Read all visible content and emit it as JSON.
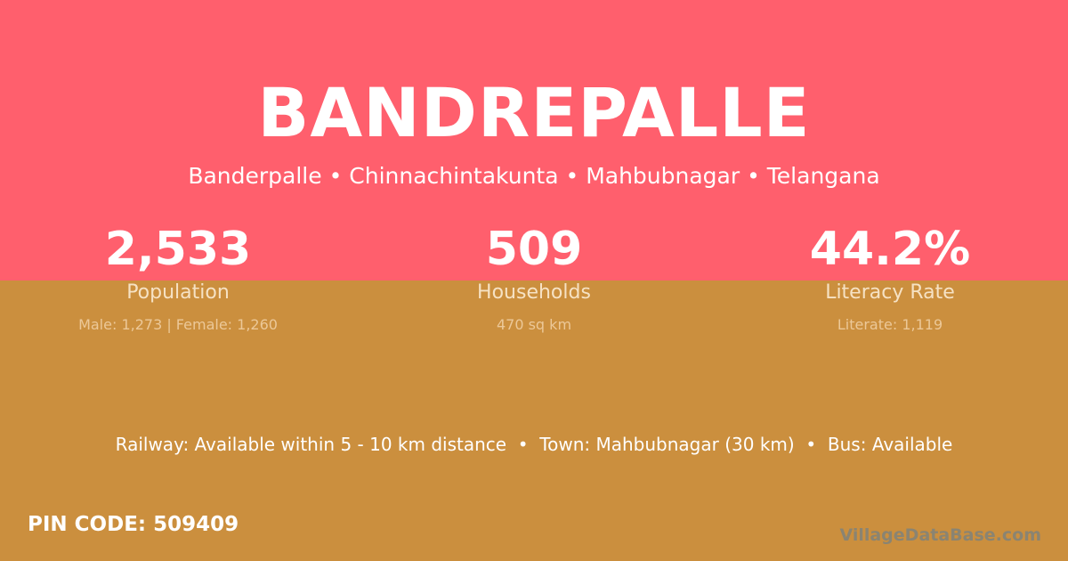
{
  "colors": {
    "top_background": "#ff5f6d",
    "bottom_background": "#cb8f3e"
  },
  "village": {
    "name": "BANDREPALLE",
    "location": "Banderpalle • Chinnachintakunta • Mahbubnagar • Telangana"
  },
  "stats": [
    {
      "value": "2,533",
      "label": "Population",
      "detail": "Male: 1,273 | Female: 1,260"
    },
    {
      "value": "509",
      "label": "Households",
      "detail": "470 sq km"
    },
    {
      "value": "44.2%",
      "label": "Literacy Rate",
      "detail": "Literate: 1,119"
    }
  ],
  "facilities": "Railway: Available within 5 - 10 km distance  •  Town: Mahbubnagar (30 km)  •  Bus: Available",
  "pin_code": "PIN CODE: 509409",
  "brand": "VillageDataBase.com"
}
